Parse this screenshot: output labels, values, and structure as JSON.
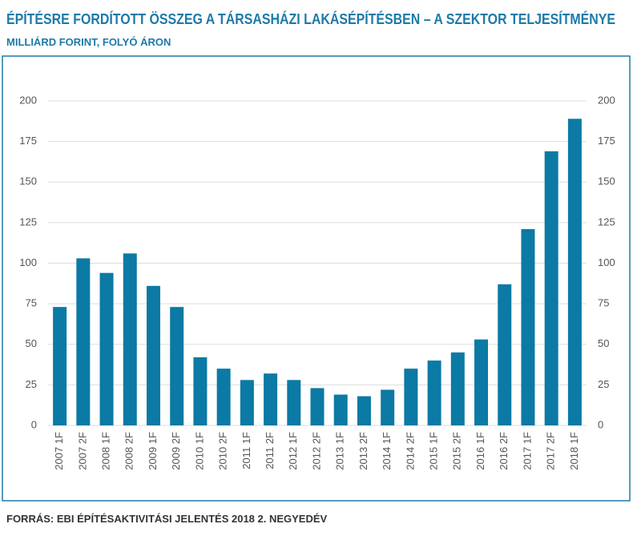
{
  "chart_data": {
    "type": "bar",
    "title": "ÉPÍTÉSRE FORDÍTOTT ÖSSZEG A TÁRSASHÁZI LAKÁSÉPÍTÉSBEN – A SZEKTOR TELJESÍTMÉNYE",
    "subtitle": "MILLIÁRD FORINT, FOLYÓ ÁRON",
    "source": "FORRÁS: EBI ÉPÍTÉSAKTIVITÁSI JELENTÉS 2018 2. NEGYEDÉV",
    "categories": [
      "2007 1F",
      "2007 2F",
      "2008 1F",
      "2008 2F",
      "2009 1F",
      "2009 2F",
      "2010 1F",
      "2010 2F",
      "2011 1F",
      "2011 2F",
      "2012 1F",
      "2012 2F",
      "2013 1F",
      "2013 2F",
      "2014 1F",
      "2014 2F",
      "2015 1F",
      "2015 2F",
      "2016 1F",
      "2016 2F",
      "2017 1F",
      "2017 2F",
      "2018 1F"
    ],
    "values": [
      73,
      103,
      94,
      106,
      86,
      73,
      42,
      35,
      28,
      32,
      28,
      23,
      19,
      18,
      22,
      35,
      40,
      45,
      53,
      87,
      121,
      169,
      189
    ],
    "color": "#0b7aa4",
    "ylim": [
      0,
      200
    ],
    "yticks": [
      0,
      25,
      50,
      75,
      100,
      125,
      150,
      175,
      200
    ],
    "y2lim": [
      0,
      200
    ],
    "y2ticks": [
      0,
      25,
      50,
      75,
      100,
      125,
      150,
      175,
      200
    ],
    "grid": true
  }
}
